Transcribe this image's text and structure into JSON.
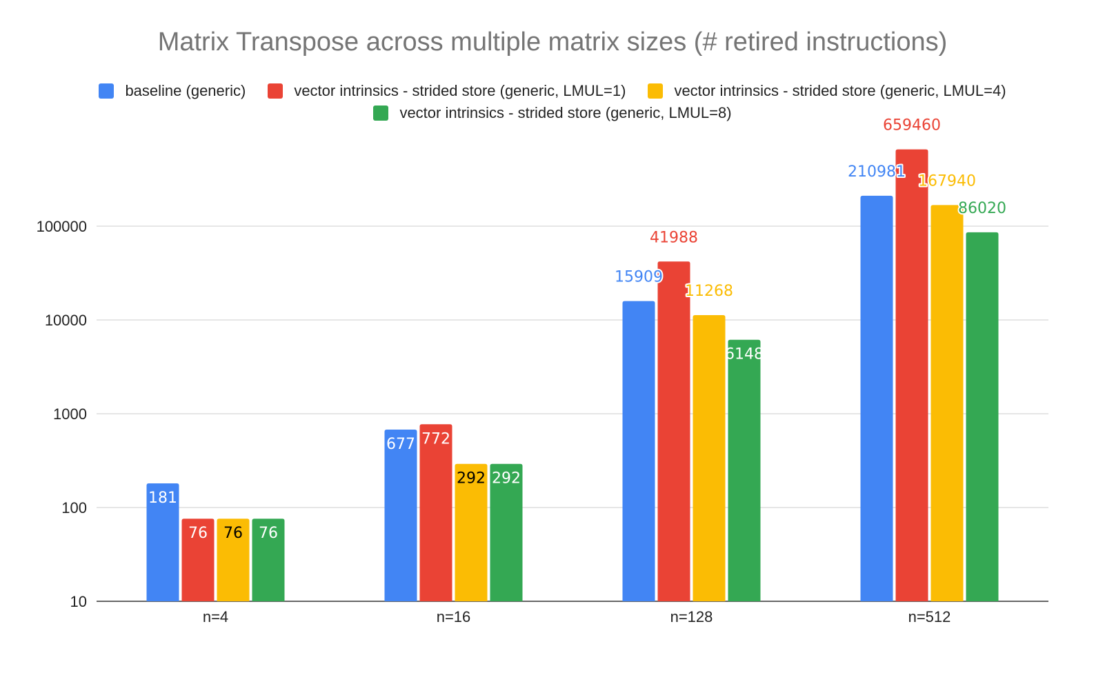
{
  "chart_data": {
    "type": "bar",
    "title": "Matrix Transpose across multiple matrix sizes (# retired instructions)",
    "xlabel": "",
    "ylabel": "",
    "yscale": "log",
    "ylim": [
      10,
      1000000
    ],
    "yticks": [
      10,
      100,
      1000,
      10000,
      100000
    ],
    "ytick_labels": [
      "10",
      "100",
      "1000",
      "10000",
      "100000"
    ],
    "grid": true,
    "legend_position": "top",
    "categories": [
      "n=4",
      "n=16",
      "n=128",
      "n=512"
    ],
    "series": [
      {
        "name": "baseline (generic)",
        "color": "#4285F4",
        "values": [
          181,
          677,
          15909,
          210981
        ]
      },
      {
        "name": "vector intrinsics - strided store (generic, LMUL=1)",
        "color": "#EA4335",
        "values": [
          76,
          772,
          41988,
          659460
        ]
      },
      {
        "name": "vector intrinsics - strided store (generic, LMUL=4)",
        "color": "#FBBC04",
        "values": [
          76,
          292,
          11268,
          167940
        ]
      },
      {
        "name": "vector intrinsics - strided store (generic, LMUL=8)",
        "color": "#34A853",
        "values": [
          76,
          292,
          6148,
          86020
        ]
      }
    ]
  }
}
